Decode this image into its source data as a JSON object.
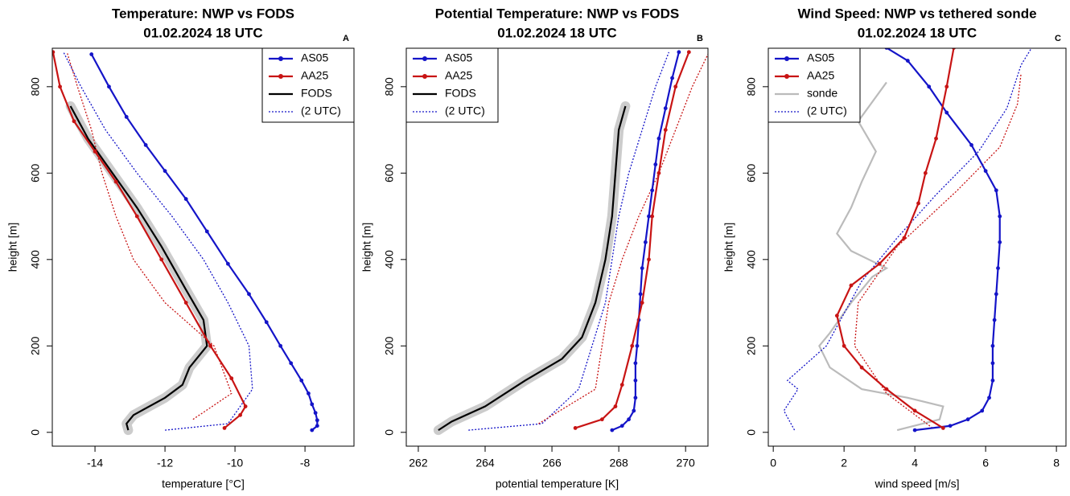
{
  "chart_data": [
    {
      "type": "line",
      "title": "Temperature: NWP vs FODS",
      "subtitle": "01.02.2024 18 UTC",
      "panel_label": "A",
      "x_label": "temperature [°C]",
      "y_label": "height [m]",
      "legend": "topright",
      "xlim": [
        -15.22,
        -6.6
      ],
      "ylim": [
        -32,
        889
      ],
      "xticks": [
        -14,
        -12,
        -10,
        -8
      ],
      "yticks": [
        0,
        200,
        400,
        600,
        800
      ],
      "series": [
        {
          "name": "AS05",
          "color": "#1414c8",
          "style": "points",
          "x": [
            -7.8,
            -7.65,
            -7.65,
            -7.7,
            -7.8,
            -7.9,
            -8.1,
            -8.4,
            -8.7,
            -9.1,
            -9.6,
            -10.2,
            -10.8,
            -11.4,
            -12.0,
            -12.55,
            -13.1,
            -13.6,
            -14.1
          ],
          "y": [
            5,
            15,
            28,
            45,
            65,
            90,
            120,
            160,
            200,
            255,
            320,
            390,
            465,
            540,
            605,
            665,
            730,
            800,
            875
          ]
        },
        {
          "name": "AA25",
          "color": "#c81414",
          "style": "points",
          "x": [
            -10.3,
            -9.85,
            -9.7,
            -10.1,
            -10.7,
            -11.4,
            -12.1,
            -12.8,
            -13.4,
            -14.0,
            -14.6,
            -15.0,
            -15.2
          ],
          "y": [
            10,
            40,
            60,
            125,
            200,
            300,
            400,
            500,
            580,
            650,
            720,
            800,
            880
          ]
        },
        {
          "name": "FODS",
          "color": "#000000",
          "style": "band",
          "x": [
            -13.05,
            -13.1,
            -12.9,
            -12.0,
            -11.5,
            -11.3,
            -10.8,
            -10.9,
            -11.4,
            -12.1,
            -12.8,
            -13.5,
            -14.2,
            -14.7
          ],
          "y": [
            5,
            20,
            40,
            80,
            110,
            150,
            200,
            260,
            330,
            430,
            520,
            600,
            680,
            755
          ]
        },
        {
          "name": "(2 UTC)",
          "color": "#1414c8",
          "style": "dotted",
          "x": [
            -12.0,
            -10.2,
            -9.5,
            -9.6,
            -10.2,
            -10.9,
            -11.8,
            -12.8,
            -13.7,
            -14.4,
            -14.9
          ],
          "y": [
            5,
            20,
            100,
            200,
            300,
            400,
            500,
            600,
            700,
            800,
            880
          ]
        },
        {
          "name": "(2 UTC)",
          "color": "#c81414",
          "style": "dotted",
          "x": [
            -11.2,
            -10.1,
            -10.6,
            -12.0,
            -12.9,
            -13.4,
            -13.8,
            -14.1,
            -14.5,
            -14.8
          ],
          "y": [
            30,
            90,
            200,
            300,
            400,
            500,
            600,
            700,
            800,
            880
          ]
        }
      ]
    },
    {
      "type": "line",
      "title": "Potential Temperature: NWP vs FODS",
      "subtitle": "01.02.2024 18 UTC",
      "panel_label": "B",
      "x_label": "potential temperature [K]",
      "y_label": "height [m]",
      "legend": "topleft",
      "xlim": [
        261.64,
        270.67
      ],
      "ylim": [
        -32,
        889
      ],
      "xticks": [
        262,
        264,
        266,
        268,
        270
      ],
      "yticks": [
        0,
        200,
        400,
        600,
        800
      ],
      "series": [
        {
          "name": "AS05",
          "color": "#1414c8",
          "style": "points",
          "x": [
            267.8,
            268.1,
            268.3,
            268.45,
            268.5,
            268.5,
            268.5,
            268.55,
            268.6,
            268.65,
            268.7,
            268.8,
            268.9,
            269.0,
            269.1,
            269.2,
            269.4,
            269.6,
            269.8
          ],
          "y": [
            5,
            15,
            30,
            50,
            80,
            120,
            160,
            200,
            260,
            320,
            380,
            440,
            500,
            560,
            620,
            680,
            750,
            820,
            880
          ]
        },
        {
          "name": "AA25",
          "color": "#c81414",
          "style": "points",
          "x": [
            266.7,
            267.5,
            267.9,
            268.1,
            268.4,
            268.7,
            268.9,
            269.0,
            269.2,
            269.4,
            269.7,
            270.1
          ],
          "y": [
            10,
            30,
            60,
            110,
            200,
            300,
            400,
            500,
            600,
            700,
            800,
            880
          ]
        },
        {
          "name": "FODS",
          "color": "#000000",
          "style": "band",
          "x": [
            262.6,
            263.0,
            264.0,
            265.2,
            266.3,
            266.9,
            267.3,
            267.6,
            267.8,
            267.9,
            268.0,
            268.2
          ],
          "y": [
            5,
            25,
            60,
            120,
            170,
            220,
            300,
            400,
            500,
            600,
            700,
            755
          ]
        },
        {
          "name": "(2 UTC)",
          "color": "#1414c8",
          "style": "dotted",
          "x": [
            263.5,
            265.7,
            266.8,
            267.2,
            267.6,
            267.8,
            268.0,
            268.3,
            268.7,
            269.1,
            269.5
          ],
          "y": [
            5,
            20,
            100,
            200,
            300,
            400,
            500,
            600,
            700,
            800,
            880
          ]
        },
        {
          "name": "(2 UTC)",
          "color": "#c81414",
          "style": "dotted",
          "x": [
            265.6,
            267.3,
            267.5,
            267.7,
            268.1,
            268.6,
            269.2,
            269.7,
            270.2,
            270.7
          ],
          "y": [
            20,
            100,
            200,
            300,
            400,
            500,
            600,
            700,
            800,
            880
          ]
        }
      ]
    },
    {
      "type": "line",
      "title": "Wind Speed: NWP vs tethered sonde",
      "subtitle": "01.02.2024 18 UTC",
      "panel_label": "C",
      "x_label": "wind speed [m/s]",
      "y_label": "height [m]",
      "legend": "topleft",
      "xlim": [
        -0.14,
        8.27
      ],
      "ylim": [
        -32,
        889
      ],
      "xticks": [
        0,
        2,
        4,
        6,
        8
      ],
      "yticks": [
        0,
        200,
        400,
        600,
        800
      ],
      "series": [
        {
          "name": "AS05",
          "color": "#1414c8",
          "style": "points",
          "x": [
            4.0,
            5.0,
            5.5,
            5.9,
            6.1,
            6.2,
            6.2,
            6.2,
            6.25,
            6.3,
            6.35,
            6.4,
            6.4,
            6.3,
            6.0,
            5.6,
            4.9,
            4.4,
            3.8,
            3.2
          ],
          "y": [
            5,
            15,
            30,
            50,
            80,
            120,
            160,
            200,
            260,
            320,
            380,
            440,
            500,
            560,
            605,
            665,
            740,
            800,
            860,
            890
          ]
        },
        {
          "name": "AA25",
          "color": "#c81414",
          "style": "points",
          "x": [
            4.8,
            4.0,
            3.2,
            2.5,
            2.0,
            1.8,
            2.2,
            3.0,
            3.7,
            4.1,
            4.3,
            4.6,
            4.9,
            5.1
          ],
          "y": [
            10,
            50,
            100,
            150,
            200,
            270,
            340,
            390,
            450,
            530,
            600,
            680,
            800,
            890
          ]
        },
        {
          "name": "sonde",
          "color": "#bbbbbb",
          "style": "line",
          "x": [
            3.5,
            4.7,
            4.8,
            3.8,
            2.5,
            1.6,
            1.3,
            1.6,
            2.2,
            2.8,
            3.2,
            2.2,
            1.8,
            2.2,
            2.5,
            2.9,
            2.4,
            3.2
          ],
          "y": [
            5,
            30,
            60,
            80,
            100,
            150,
            200,
            230,
            300,
            360,
            380,
            420,
            460,
            520,
            580,
            650,
            720,
            810
          ]
        },
        {
          "name": "(2 UTC)",
          "color": "#1414c8",
          "style": "dotted",
          "x": [
            0.6,
            0.3,
            0.7,
            0.4,
            1.5,
            2.5,
            3.5,
            4.6,
            5.8,
            6.6,
            7.0,
            7.3
          ],
          "y": [
            5,
            50,
            100,
            120,
            200,
            350,
            450,
            550,
            650,
            750,
            850,
            890
          ]
        },
        {
          "name": "(2 UTC)",
          "color": "#c81414",
          "style": "dotted",
          "x": [
            4.5,
            3.2,
            2.3,
            2.4,
            3.5,
            5.2,
            6.4,
            6.9,
            7.0
          ],
          "y": [
            10,
            90,
            200,
            300,
            430,
            560,
            660,
            760,
            830
          ]
        }
      ]
    }
  ]
}
